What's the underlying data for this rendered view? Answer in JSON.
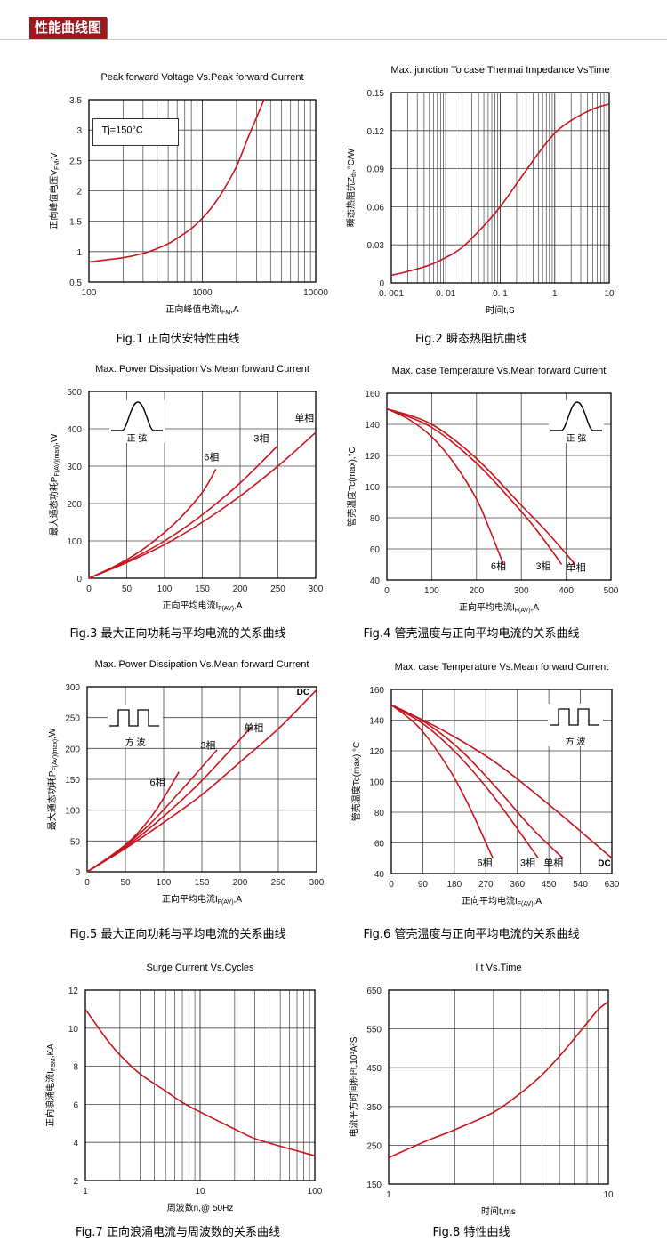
{
  "banner": {
    "title": "性能曲线图"
  },
  "colors": {
    "curve": "#c8141c",
    "grid": "#444444",
    "banner_bg": "#a0181e"
  },
  "chart_data": [
    {
      "id": "fig1",
      "type": "line",
      "xscale": "log",
      "title": "Peak forward Voltage Vs.Peak forward Current",
      "xlabel": "正向峰值电流I_FM,A",
      "ylabel": "正向峰值电压V_FM,V",
      "xlim": [
        100,
        10000
      ],
      "ylim": [
        0.5,
        3.5
      ],
      "xticks": [
        100,
        1000,
        10000
      ],
      "xtick_labels": [
        "100",
        "1000",
        "10000"
      ],
      "yticks": [
        0.5,
        1,
        1.5,
        2,
        2.5,
        3,
        3.5
      ],
      "ytick_labels": [
        "0.5",
        "1",
        "1.5",
        "2",
        "2.5",
        "3",
        "3.5"
      ],
      "annotations": [
        {
          "text": "Tj=150°C",
          "x": 130,
          "y": 2.95,
          "box": true
        }
      ],
      "series": [
        {
          "name": "",
          "x": [
            100,
            200,
            300,
            400,
            500,
            600,
            800,
            1000,
            1200,
            1500,
            2000,
            2500,
            3000,
            3500
          ],
          "y": [
            0.83,
            0.9,
            0.97,
            1.05,
            1.13,
            1.22,
            1.38,
            1.55,
            1.72,
            1.98,
            2.4,
            2.85,
            3.2,
            3.5
          ]
        }
      ],
      "caption": "Fig.1  正向伏安特性曲线"
    },
    {
      "id": "fig2",
      "type": "line",
      "xscale": "log",
      "title": "Max. junction To case Thermai Impedance VsTime",
      "xlabel": "时间t,S",
      "ylabel": "瞬态热阻抗Z_th,°C/W",
      "xlim": [
        0.001,
        10
      ],
      "ylim": [
        0,
        0.15
      ],
      "xticks": [
        0.001,
        0.01,
        0.1,
        1,
        10
      ],
      "xtick_labels": [
        "0. 001",
        "0. 01",
        "0. 1",
        "1",
        "10"
      ],
      "yticks": [
        0,
        0.03,
        0.06,
        0.09,
        0.12,
        0.15
      ],
      "ytick_labels": [
        "0",
        "0.03",
        "0.06",
        "0.09",
        "0.12",
        "0.15"
      ],
      "annotations": [],
      "series": [
        {
          "name": "",
          "x": [
            0.001,
            0.002,
            0.005,
            0.01,
            0.02,
            0.05,
            0.1,
            0.2,
            0.5,
            1,
            2,
            5,
            10
          ],
          "y": [
            0.006,
            0.009,
            0.014,
            0.02,
            0.028,
            0.045,
            0.06,
            0.078,
            0.102,
            0.118,
            0.128,
            0.137,
            0.141
          ]
        }
      ],
      "caption": "Fig.2  瞬态热阻抗曲线"
    },
    {
      "id": "fig3",
      "type": "line",
      "xscale": "linear",
      "title": "Max. Power Dissipation Vs.Mean forward Current",
      "xlabel": "正向平均电流I_F(AV),A",
      "ylabel": "最大通态功耗P_F(AV)(max),W",
      "xlim": [
        0,
        300
      ],
      "ylim": [
        0,
        500
      ],
      "xticks": [
        0,
        50,
        100,
        150,
        200,
        250,
        300
      ],
      "xtick_labels": [
        "0",
        "50",
        "100",
        "150",
        "200",
        "250",
        "300"
      ],
      "yticks": [
        0,
        100,
        200,
        300,
        400,
        500
      ],
      "ytick_labels": [
        "0",
        "100",
        "200",
        "300",
        "400",
        "500"
      ],
      "inset": {
        "shape": "sine",
        "label": "正   弦"
      },
      "annotations": [
        {
          "text": "6相",
          "x": 152,
          "y": 315
        },
        {
          "text": "3相",
          "x": 218,
          "y": 365
        },
        {
          "text": "单相",
          "x": 272,
          "y": 420
        }
      ],
      "series": [
        {
          "name": "6相",
          "x": [
            0,
            30,
            60,
            90,
            120,
            150,
            168
          ],
          "y": [
            0,
            28,
            62,
            106,
            160,
            230,
            292
          ]
        },
        {
          "name": "3相",
          "x": [
            0,
            50,
            100,
            150,
            200,
            250
          ],
          "y": [
            0,
            45,
            100,
            170,
            255,
            355
          ]
        },
        {
          "name": "单相",
          "x": [
            0,
            50,
            100,
            150,
            200,
            250,
            300
          ],
          "y": [
            0,
            42,
            90,
            150,
            220,
            300,
            390
          ]
        }
      ],
      "caption": "Fig.3  最大正向功耗与平均电流的关系曲线"
    },
    {
      "id": "fig4",
      "type": "line",
      "xscale": "linear",
      "title": "Max. case Temperature Vs.Mean forward Current",
      "xlabel": "正向平均电流I_F(AV),A",
      "ylabel": "管壳温度Tc(max),°C",
      "xlim": [
        0,
        500
      ],
      "ylim": [
        40,
        160
      ],
      "xticks": [
        0,
        100,
        200,
        300,
        400,
        500
      ],
      "xtick_labels": [
        "0",
        "100",
        "200",
        "300",
        "400",
        "500"
      ],
      "yticks": [
        40,
        60,
        80,
        100,
        120,
        140,
        160
      ],
      "ytick_labels": [
        "40",
        "60",
        "80",
        "100",
        "120",
        "140",
        "160"
      ],
      "inset": {
        "shape": "sine",
        "label": "正   弦"
      },
      "annotations": [
        {
          "text": "6相",
          "x": 232,
          "y": 47
        },
        {
          "text": "3相",
          "x": 332,
          "y": 47
        },
        {
          "text": "单相",
          "x": 400,
          "y": 46
        }
      ],
      "series": [
        {
          "name": "6相",
          "x": [
            0,
            50,
            100,
            150,
            200,
            230,
            260
          ],
          "y": [
            150,
            143,
            132,
            115,
            92,
            72,
            50
          ]
        },
        {
          "name": "3相",
          "x": [
            0,
            100,
            200,
            300,
            350,
            390
          ],
          "y": [
            150,
            138,
            115,
            84,
            66,
            50
          ]
        },
        {
          "name": "单相",
          "x": [
            0,
            100,
            200,
            300,
            360,
            420
          ],
          "y": [
            150,
            140,
            118,
            88,
            70,
            50
          ]
        }
      ],
      "caption": "Fig.4  管壳温度与正向平均电流的关系曲线"
    },
    {
      "id": "fig5",
      "type": "line",
      "xscale": "linear",
      "title": "Max. Power Dissipation Vs.Mean forward Current",
      "xlabel": "正向平均电流I_F(AV),A",
      "ylabel": "最大通态功耗P_F(AV)(max),W",
      "xlim": [
        0,
        300
      ],
      "ylim": [
        0,
        300
      ],
      "xticks": [
        0,
        50,
        100,
        150,
        200,
        250,
        300
      ],
      "xtick_labels": [
        "0",
        "50",
        "100",
        "150",
        "200",
        "250",
        "300"
      ],
      "yticks": [
        0,
        50,
        100,
        150,
        200,
        250,
        300
      ],
      "ytick_labels": [
        "0",
        "50",
        "100",
        "150",
        "200",
        "250",
        "300"
      ],
      "inset": {
        "shape": "square",
        "label": "方   波"
      },
      "annotations": [
        {
          "text": "6相",
          "x": 82,
          "y": 140
        },
        {
          "text": "3相",
          "x": 148,
          "y": 200
        },
        {
          "text": "单相",
          "x": 205,
          "y": 228
        },
        {
          "text": "DC",
          "x": 274,
          "y": 287
        }
      ],
      "series": [
        {
          "name": "6相",
          "x": [
            0,
            30,
            60,
            90,
            120
          ],
          "y": [
            0,
            25,
            55,
            100,
            162
          ]
        },
        {
          "name": "3相",
          "x": [
            0,
            40,
            80,
            120,
            170
          ],
          "y": [
            0,
            33,
            75,
            128,
            198
          ]
        },
        {
          "name": "单相",
          "x": [
            0,
            50,
            100,
            150,
            215
          ],
          "y": [
            0,
            40,
            90,
            148,
            235
          ]
        },
        {
          "name": "DC",
          "x": [
            0,
            50,
            100,
            150,
            200,
            250,
            300
          ],
          "y": [
            0,
            38,
            80,
            125,
            178,
            232,
            295
          ]
        }
      ],
      "caption": "Fig.5  最大正向功耗与平均电流的关系曲线"
    },
    {
      "id": "fig6",
      "type": "line",
      "xscale": "linear",
      "title": "Max. case Temperature Vs.Mean forward Current",
      "xlabel": "正向平均电流I_F(AV),A",
      "ylabel": "管壳温度Tc(max),°C",
      "xlim": [
        0,
        630
      ],
      "ylim": [
        40,
        160
      ],
      "xticks": [
        0,
        90,
        180,
        270,
        360,
        450,
        540,
        630
      ],
      "xtick_labels": [
        "0",
        "90",
        "180",
        "270",
        "360",
        "450",
        "540",
        "630"
      ],
      "yticks": [
        40,
        60,
        80,
        100,
        120,
        140,
        160
      ],
      "ytick_labels": [
        "40",
        "60",
        "80",
        "100",
        "120",
        "140",
        "160"
      ],
      "inset": {
        "shape": "square",
        "label": "方   波"
      },
      "annotations": [
        {
          "text": "6相",
          "x": 245,
          "y": 45
        },
        {
          "text": "3相",
          "x": 368,
          "y": 45
        },
        {
          "text": "单相",
          "x": 435,
          "y": 45
        },
        {
          "text": "DC",
          "x": 590,
          "y": 45
        }
      ],
      "series": [
        {
          "name": "6相",
          "x": [
            0,
            80,
            160,
            220,
            290
          ],
          "y": [
            150,
            135,
            110,
            85,
            50
          ]
        },
        {
          "name": "3相",
          "x": [
            0,
            100,
            200,
            300,
            420
          ],
          "y": [
            150,
            136,
            115,
            88,
            50
          ]
        },
        {
          "name": "单相",
          "x": [
            0,
            100,
            200,
            300,
            400,
            490
          ],
          "y": [
            150,
            138,
            120,
            96,
            70,
            50
          ]
        },
        {
          "name": "DC",
          "x": [
            0,
            150,
            300,
            450,
            630
          ],
          "y": [
            150,
            133,
            112,
            85,
            50
          ]
        }
      ],
      "caption": "Fig.6  管壳温度与正向平均电流的关系曲线"
    },
    {
      "id": "fig7",
      "type": "line",
      "xscale": "log",
      "title": "Surge Current Vs.Cycles",
      "xlabel": "周波数n,@ 50Hz",
      "ylabel": "正向浪涌电流I_FSM,KA",
      "xlim": [
        1,
        100
      ],
      "ylim": [
        2,
        12
      ],
      "xticks": [
        1,
        10,
        100
      ],
      "xtick_labels": [
        "1",
        "10",
        "100"
      ],
      "yticks": [
        2,
        4,
        6,
        8,
        10,
        12
      ],
      "ytick_labels": [
        "2",
        "4",
        "6",
        "8",
        "10",
        "12"
      ],
      "annotations": [],
      "series": [
        {
          "name": "",
          "x": [
            1,
            1.5,
            2,
            3,
            5,
            7,
            10,
            20,
            30,
            50,
            100
          ],
          "y": [
            11,
            9.5,
            8.6,
            7.6,
            6.7,
            6.1,
            5.6,
            4.7,
            4.2,
            3.8,
            3.3
          ]
        }
      ],
      "caption": "Fig.7  正向浪涌电流与周波数的关系曲线"
    },
    {
      "id": "fig8",
      "type": "line",
      "xscale": "log",
      "title": "I t Vs.Time",
      "xlabel": "时间t,ms",
      "ylabel": "电流平方时间积I²t,10³A²S",
      "xlim": [
        1,
        10
      ],
      "ylim": [
        150,
        650
      ],
      "xticks": [
        1,
        10
      ],
      "xtick_labels": [
        "1",
        "10"
      ],
      "yticks": [
        150,
        250,
        350,
        450,
        550,
        650
      ],
      "ytick_labels": [
        "150",
        "250",
        "350",
        "450",
        "550",
        "650"
      ],
      "annotations": [],
      "series": [
        {
          "name": "",
          "x": [
            1,
            1.5,
            2,
            3,
            4,
            5,
            6,
            7,
            8,
            9,
            10
          ],
          "y": [
            218,
            262,
            290,
            335,
            385,
            432,
            480,
            525,
            565,
            600,
            620
          ]
        }
      ],
      "caption": "Fig.8  特性曲线"
    }
  ]
}
